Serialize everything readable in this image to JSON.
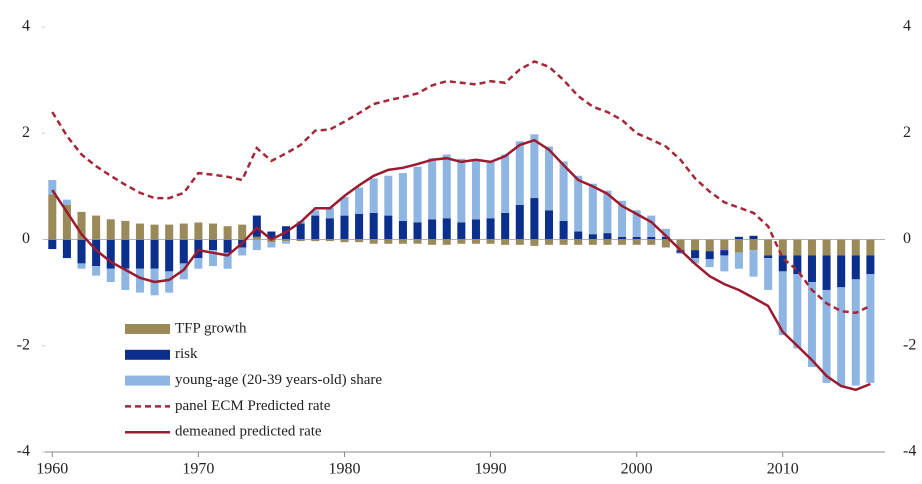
{
  "chart_data": {
    "type": "bar-line",
    "x": [
      1960,
      1961,
      1962,
      1963,
      1964,
      1965,
      1966,
      1967,
      1968,
      1969,
      1970,
      1971,
      1972,
      1973,
      1974,
      1975,
      1976,
      1977,
      1978,
      1979,
      1980,
      1981,
      1982,
      1983,
      1984,
      1985,
      1986,
      1987,
      1988,
      1989,
      1990,
      1991,
      1992,
      1993,
      1994,
      1995,
      1996,
      1997,
      1998,
      1999,
      2000,
      2001,
      2002,
      2003,
      2004,
      2005,
      2006,
      2007,
      2008,
      2009,
      2010,
      2011,
      2012,
      2013,
      2014,
      2015,
      2016
    ],
    "series": [
      {
        "name": "TFP growth",
        "type": "bar",
        "color": "#9a8a5a",
        "values": [
          0.85,
          0.65,
          0.52,
          0.45,
          0.38,
          0.35,
          0.3,
          0.28,
          0.28,
          0.3,
          0.32,
          0.3,
          0.25,
          0.28,
          0.05,
          -0.05,
          -0.03,
          -0.03,
          -0.03,
          -0.03,
          -0.05,
          -0.05,
          -0.08,
          -0.08,
          -0.08,
          -0.08,
          -0.1,
          -0.1,
          -0.08,
          -0.08,
          -0.08,
          -0.1,
          -0.1,
          -0.12,
          -0.1,
          -0.1,
          -0.1,
          -0.1,
          -0.1,
          -0.1,
          -0.1,
          -0.1,
          -0.15,
          -0.2,
          -0.2,
          -0.22,
          -0.2,
          -0.25,
          -0.2,
          -0.3,
          -0.3,
          -0.3,
          -0.3,
          -0.3,
          -0.3,
          -0.3,
          -0.3
        ]
      },
      {
        "name": "risk",
        "type": "bar",
        "color": "#0a2f8c",
        "values": [
          -0.18,
          -0.35,
          -0.45,
          -0.5,
          -0.55,
          -0.55,
          -0.55,
          -0.55,
          -0.6,
          -0.45,
          -0.35,
          -0.2,
          -0.25,
          -0.15,
          0.4,
          0.15,
          0.25,
          0.3,
          0.45,
          0.4,
          0.45,
          0.48,
          0.5,
          0.45,
          0.35,
          0.32,
          0.38,
          0.4,
          0.32,
          0.38,
          0.4,
          0.5,
          0.65,
          0.78,
          0.55,
          0.35,
          0.15,
          0.1,
          0.12,
          0.05,
          0.05,
          0.05,
          0.05,
          -0.05,
          -0.15,
          -0.15,
          -0.1,
          0.05,
          0.07,
          -0.05,
          -0.3,
          -0.35,
          -0.5,
          -0.65,
          -0.6,
          -0.45,
          -0.35
        ]
      },
      {
        "name": "young-age (20-39 years-old) share",
        "type": "bar",
        "color": "#8fb6e3",
        "values": [
          0.27,
          0.1,
          -0.1,
          -0.18,
          -0.25,
          -0.4,
          -0.45,
          -0.5,
          -0.4,
          -0.3,
          -0.2,
          -0.3,
          -0.3,
          -0.15,
          -0.2,
          -0.1,
          -0.05,
          0.05,
          0.1,
          0.2,
          0.35,
          0.5,
          0.65,
          0.75,
          0.9,
          1.05,
          1.15,
          1.2,
          1.2,
          1.12,
          1.08,
          1.1,
          1.2,
          1.2,
          1.2,
          1.12,
          1.05,
          0.95,
          0.8,
          0.68,
          0.5,
          0.4,
          0.15,
          -0.02,
          -0.1,
          -0.15,
          -0.3,
          -0.3,
          -0.5,
          -0.6,
          -1.2,
          -1.4,
          -1.6,
          -1.75,
          -1.85,
          -2.0,
          -2.05
        ]
      },
      {
        "name": "panel ECM Predicted rate",
        "type": "line",
        "dashed": true,
        "color": "#a3283a",
        "values": [
          2.4,
          1.95,
          1.6,
          1.38,
          1.2,
          1.03,
          0.88,
          0.78,
          0.78,
          0.88,
          1.25,
          1.22,
          1.18,
          1.12,
          1.72,
          1.48,
          1.62,
          1.78,
          2.05,
          2.07,
          2.22,
          2.38,
          2.55,
          2.62,
          2.68,
          2.75,
          2.9,
          2.98,
          2.95,
          2.92,
          2.98,
          2.95,
          3.2,
          3.35,
          3.25,
          3.0,
          2.7,
          2.5,
          2.4,
          2.25,
          2.0,
          1.88,
          1.75,
          1.5,
          1.15,
          0.9,
          0.7,
          0.6,
          0.5,
          0.25,
          -0.35,
          -0.58,
          -0.95,
          -1.2,
          -1.35,
          -1.38,
          -1.25
        ]
      },
      {
        "name": "demeaned predicted rate",
        "type": "line",
        "dashed": false,
        "color": "#9b1b30",
        "values": [
          0.93,
          0.52,
          0.1,
          -0.2,
          -0.42,
          -0.57,
          -0.72,
          -0.8,
          -0.76,
          -0.57,
          -0.2,
          -0.25,
          -0.3,
          -0.07,
          0.22,
          0,
          0.14,
          0.33,
          0.59,
          0.59,
          0.82,
          1.02,
          1.2,
          1.31,
          1.35,
          1.42,
          1.5,
          1.53,
          1.46,
          1.5,
          1.46,
          1.57,
          1.78,
          1.87,
          1.69,
          1.4,
          1.12,
          1.0,
          0.86,
          0.63,
          0.48,
          0.33,
          0.07,
          -0.2,
          -0.46,
          -0.69,
          -0.84,
          -0.95,
          -1.1,
          -1.25,
          -1.74,
          -2.0,
          -2.27,
          -2.57,
          -2.76,
          -2.83,
          -2.72
        ]
      }
    ],
    "xlim": [
      1959.5,
      2017
    ],
    "xticks": [
      1960,
      1970,
      1980,
      1990,
      2000,
      2010
    ],
    "ylim": [
      -4,
      4
    ],
    "yticks": [
      -4,
      -2,
      0,
      2,
      4
    ],
    "y2lim": [
      -4,
      4
    ],
    "y2ticks": [
      -4,
      -2,
      0,
      2,
      4
    ],
    "legend": "lower-left"
  }
}
